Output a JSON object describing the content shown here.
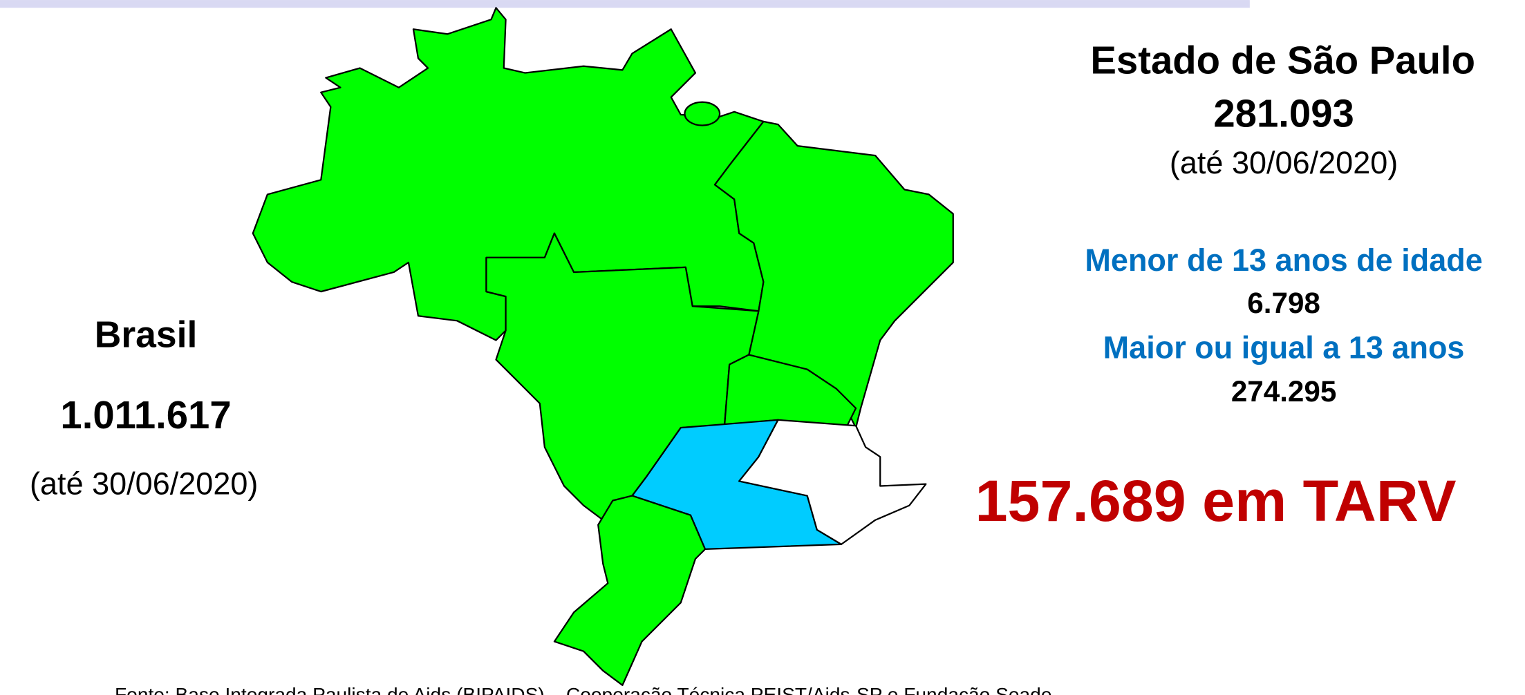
{
  "brasil": {
    "label": "Brasil",
    "total": "1.011.617",
    "date": "(até 30/06/2020)"
  },
  "sao_paulo": {
    "title": "Estado de São Paulo",
    "total": "281.093",
    "date": "(até 30/06/2020)",
    "groups": [
      {
        "label": "Menor de 13 anos de idade",
        "value": "6.798"
      },
      {
        "label": "Maior ou igual a 13 anos",
        "value": "274.295"
      }
    ],
    "tarv": "157.689 em TARV"
  },
  "source": "Fonte: Base Integrada Paulista de Aids (BIPAIDS) – Cooperação Técnica PEIST/Aids-SP e Fundação Seade"
}
